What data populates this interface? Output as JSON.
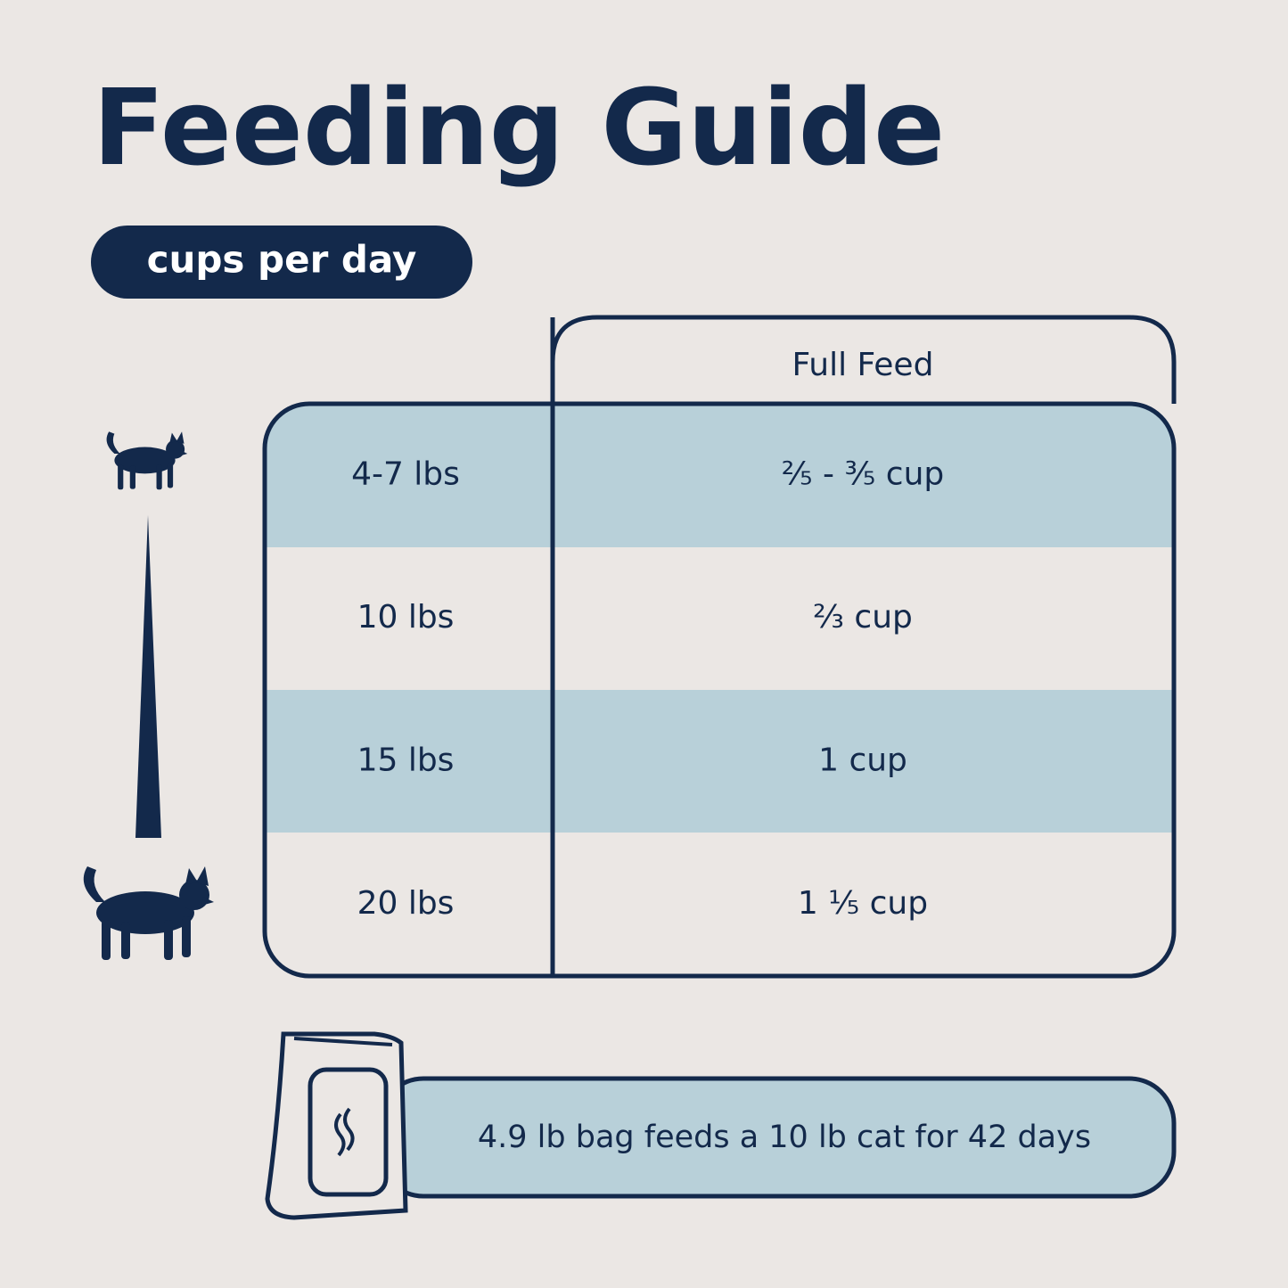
{
  "header": {
    "title": "Feeding Guide",
    "badge": "cups per day"
  },
  "table": {
    "column_header": "Full Feed",
    "rows": [
      [
        "4-7 lbs",
        "²⁄₅ - ³⁄₅ cup"
      ],
      [
        "10 lbs",
        "²⁄₃ cup"
      ],
      [
        "15 lbs",
        "1 cup"
      ],
      [
        "20 lbs",
        "1 ¹⁄₅ cup"
      ]
    ]
  },
  "footer": {
    "note": "4.9 lb bag feeds a 10 lb cat for 42 days"
  }
}
